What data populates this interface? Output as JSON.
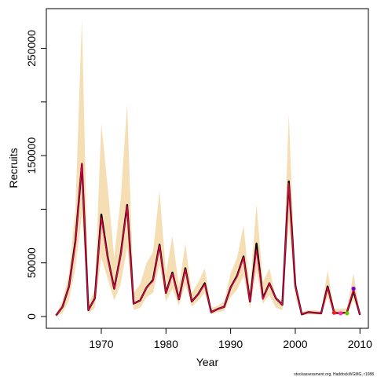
{
  "chart_data": {
    "type": "line",
    "title": "",
    "xlabel": "Year",
    "ylabel": "Recruits",
    "xlim": [
      1961.5,
      2011.3
    ],
    "ylim": [
      -11000,
      287000
    ],
    "xticks": [
      1970,
      1980,
      1990,
      2000,
      2010
    ],
    "xtick_labels": [
      "1970",
      "1980",
      "1990",
      "2000",
      "2010"
    ],
    "yticks": [
      0,
      50000,
      100000,
      150000,
      200000,
      250000
    ],
    "ytick_labels": [
      "0",
      "50000",
      "",
      "150000",
      "",
      "250000"
    ],
    "grid": false,
    "legend": "none",
    "colors": {
      "band": "#f5deb3",
      "estimate": "#000000",
      "retrospective": "#e8004a",
      "pt_2006": "#ff1a1a",
      "pt_2007": "#ff33aa",
      "pt_2008": "#66cc00",
      "pt_2009": "#7a00cc"
    },
    "x": [
      1963,
      1964,
      1965,
      1966,
      1967,
      1968,
      1969,
      1970,
      1971,
      1972,
      1973,
      1974,
      1975,
      1976,
      1977,
      1978,
      1979,
      1980,
      1981,
      1982,
      1983,
      1984,
      1985,
      1986,
      1987,
      1988,
      1989,
      1990,
      1991,
      1992,
      1993,
      1994,
      1995,
      1996,
      1997,
      1998,
      1999,
      2000,
      2001,
      2002,
      2003,
      2004,
      2005,
      2006,
      2007,
      2008,
      2009,
      2010
    ],
    "series": [
      {
        "type": "band",
        "lower": [
          0,
          3000,
          15000,
          45000,
          95000,
          3000,
          8000,
          55000,
          35000,
          15000,
          30000,
          65000,
          6000,
          8000,
          18000,
          22000,
          48000,
          14000,
          26000,
          10000,
          30000,
          9000,
          15000,
          22000,
          2000,
          4000,
          5000,
          18000,
          25000,
          38000,
          8000,
          42000,
          12000,
          20000,
          8000,
          6000,
          88000,
          18000,
          1000,
          2000,
          2000,
          1500,
          18000,
          2000,
          2000,
          2500,
          15000,
          1000
        ],
        "upper": [
          2000,
          15000,
          40000,
          100000,
          278000,
          12000,
          25000,
          180000,
          120000,
          55000,
          110000,
          198000,
          22000,
          30000,
          50000,
          60000,
          117000,
          40000,
          75000,
          28000,
          68000,
          22000,
          32000,
          45000,
          8000,
          10000,
          14000,
          40000,
          55000,
          85000,
          25000,
          105000,
          32000,
          45000,
          18000,
          15000,
          189000,
          35000,
          4000,
          6000,
          6000,
          5000,
          43000,
          7000,
          7000,
          8000,
          40000,
          3000
        ]
      },
      {
        "type": "line",
        "values": [
          1000,
          9000,
          28000,
          70000,
          142000,
          6000,
          17000,
          95000,
          55000,
          26000,
          58000,
          104000,
          12000,
          15000,
          27000,
          34000,
          67000,
          22000,
          41000,
          16000,
          45000,
          14000,
          21000,
          31000,
          4000,
          7000,
          9000,
          27000,
          38000,
          56000,
          14000,
          68000,
          17000,
          31000,
          17000,
          11000,
          126000,
          29000,
          2000,
          4000,
          3500,
          3000,
          28000,
          3500,
          3000,
          4000,
          24000,
          1500
        ]
      },
      {
        "type": "line",
        "values": [
          1000,
          9000,
          28000,
          68000,
          143000,
          6000,
          17000,
          92000,
          54000,
          26000,
          57000,
          103000,
          12000,
          15000,
          27000,
          33000,
          66000,
          22000,
          40000,
          16000,
          44000,
          14000,
          21000,
          30000,
          4000,
          7000,
          9000,
          27000,
          37000,
          55000,
          14000,
          62000,
          16000,
          31000,
          17000,
          11000,
          124000,
          29000,
          2000,
          4000,
          3500,
          3000,
          27000,
          3500,
          3000,
          4000,
          26000,
          1500
        ]
      }
    ],
    "points": [
      {
        "x": 2006,
        "y": 3500,
        "color": "pt_2006"
      },
      {
        "x": 2007,
        "y": 3000,
        "color": "pt_2007"
      },
      {
        "x": 2008,
        "y": 3000,
        "color": "pt_2008"
      },
      {
        "x": 2009,
        "y": 26000,
        "color": "pt_2009"
      }
    ],
    "annotation": "stockassessment.org, HaddockWGMG, r1088"
  }
}
